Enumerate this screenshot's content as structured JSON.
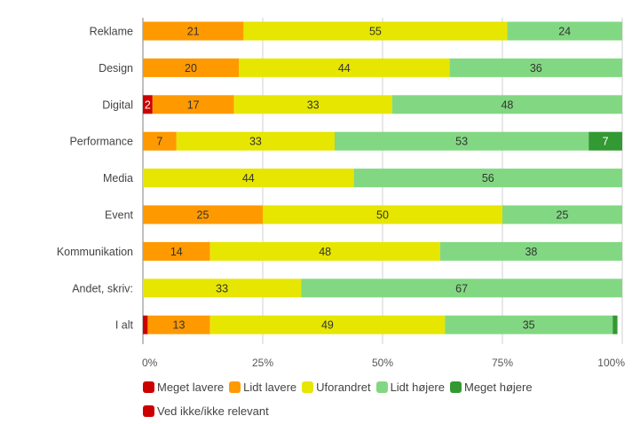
{
  "chart_data": {
    "type": "bar",
    "orientation": "horizontal",
    "stacked": true,
    "normalized": true,
    "title": "",
    "xlabel": "",
    "ylabel": "",
    "xlim": [
      0,
      100
    ],
    "x_ticks": [
      "0%",
      "25%",
      "50%",
      "75%",
      "100%"
    ],
    "x_tick_values": [
      0,
      25,
      50,
      75,
      100
    ],
    "grid": true,
    "legend_position": "bottom",
    "categories": [
      "Reklame",
      "Design",
      "Digital",
      "Performance",
      "Media",
      "Event",
      "Kommunikation",
      "Andet, skriv:",
      "I alt"
    ],
    "series": [
      {
        "name": "Meget lavere",
        "color": "#cc0000",
        "values": [
          0,
          0,
          2,
          0,
          0,
          0,
          0,
          0,
          1
        ],
        "labels": [
          "",
          "",
          "2",
          "",
          "",
          "",
          "",
          "",
          ""
        ]
      },
      {
        "name": "Lidt lavere",
        "color": "#ff9900",
        "values": [
          21,
          20,
          17,
          7,
          0,
          25,
          14,
          0,
          13
        ],
        "labels": [
          "21",
          "20",
          "17",
          "7",
          "",
          "25",
          "14",
          "",
          "13"
        ]
      },
      {
        "name": "Uforandret",
        "color": "#e6e600",
        "values": [
          55,
          44,
          33,
          33,
          44,
          50,
          48,
          33,
          49
        ],
        "labels": [
          "55",
          "44",
          "33",
          "33",
          "44",
          "50",
          "48",
          "33",
          "49"
        ]
      },
      {
        "name": "Lidt højere",
        "color": "#82d882",
        "values": [
          24,
          36,
          48,
          53,
          56,
          25,
          38,
          67,
          35
        ],
        "labels": [
          "24",
          "36",
          "48",
          "53",
          "56",
          "25",
          "38",
          "67",
          "35"
        ]
      },
      {
        "name": "Meget højere",
        "color": "#339933",
        "values": [
          0,
          0,
          0,
          7,
          0,
          0,
          0,
          0,
          1
        ],
        "labels": [
          "",
          "",
          "",
          "7",
          "",
          "",
          "",
          "",
          ""
        ]
      },
      {
        "name": "Ved ikke/ikke relevant",
        "color": "#cc0000",
        "values": [
          0,
          0,
          0,
          0,
          0,
          0,
          0,
          0,
          0
        ],
        "labels": [
          "",
          "",
          "",
          "",
          "",
          "",
          "",
          "",
          ""
        ]
      }
    ],
    "label_colors": {
      "light": "#ffffff",
      "dark": "#333333"
    }
  }
}
